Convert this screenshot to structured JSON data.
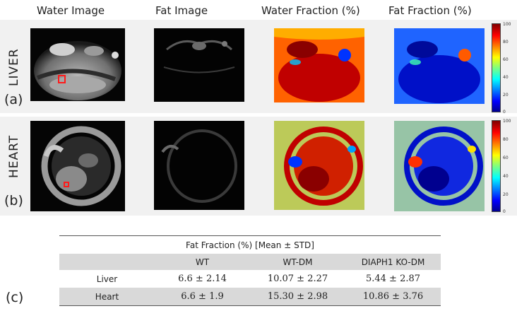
{
  "columns": [
    "Water Image",
    "Fat Image",
    "Water Fraction (%)",
    "Fat Fraction (%)"
  ],
  "rows": [
    {
      "label": "LIVER",
      "tag": "(a)"
    },
    {
      "label": "HEART",
      "tag": "(b)"
    }
  ],
  "colorbar": {
    "ticks": [
      "100",
      "80",
      "60",
      "40",
      "20",
      "0"
    ],
    "colormap": "jet",
    "low_color": "#00008f",
    "high_color": "#800000"
  },
  "roi_color": "#ff1a1a",
  "table": {
    "tag": "(c)",
    "title": "Fat Fraction (%) [Mean ± STD]",
    "headers": [
      "",
      "WT",
      "WT-DM",
      "DIAPH1 KO-DM"
    ],
    "rows": [
      {
        "label": "Liver",
        "values": [
          "6.6 ± 2.14",
          "10.07 ± 2.27",
          "5.44 ± 2.87"
        ]
      },
      {
        "label": "Heart",
        "values": [
          "6.6 ± 1.9",
          "15.30 ± 2.98",
          "10.86 ± 3.76"
        ]
      }
    ]
  }
}
